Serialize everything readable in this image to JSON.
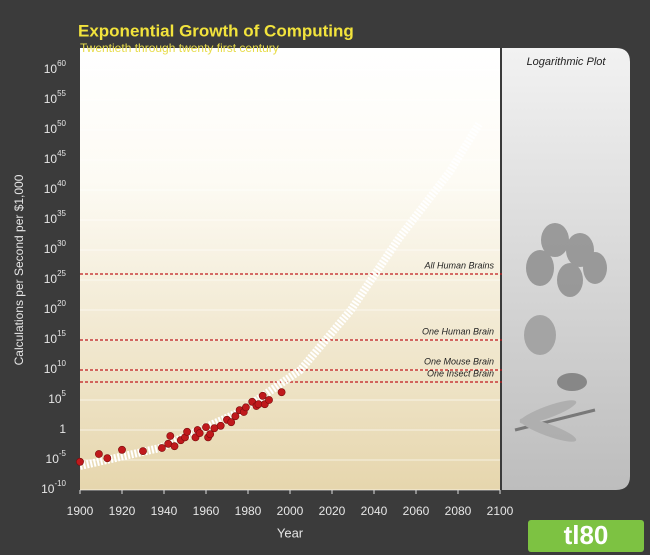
{
  "chart_data": {
    "type": "scatter",
    "title": "Exponential Growth of Computing",
    "subtitle": "Twentieth through twenty first century",
    "x_label": "Year",
    "y_label": "Calculations per Second per $1,000",
    "panel_title": "Logarithmic Plot",
    "log_y": true,
    "grid": true,
    "xlim": [
      1900,
      2100
    ],
    "xticks": [
      1900,
      1920,
      1940,
      1960,
      1980,
      2000,
      2020,
      2040,
      2060,
      2080,
      2100
    ],
    "ylim": [
      1e-10,
      1e+60
    ],
    "yticks": [
      {
        "value": 1e-10,
        "label": "10",
        "exponent": "-10"
      },
      {
        "value": 1e-05,
        "label": "10",
        "exponent": "-5"
      },
      1,
      {
        "value": 100000.0,
        "label": "10",
        "exponent": "5"
      },
      {
        "value": 10000000000.0,
        "label": "10",
        "exponent": "10"
      },
      {
        "value": 1000000000000000.0,
        "label": "10",
        "exponent": "15"
      },
      {
        "value": 1e+20,
        "label": "10",
        "exponent": "20"
      },
      {
        "value": 1e+25,
        "label": "10",
        "exponent": "25"
      },
      {
        "value": 1e+30,
        "label": "10",
        "exponent": "30"
      },
      {
        "value": 1e+35,
        "label": "10",
        "exponent": "35"
      },
      {
        "value": 1e+40,
        "label": "10",
        "exponent": "40"
      },
      {
        "value": 1e+45,
        "label": "10",
        "exponent": "45"
      },
      {
        "value": 1e+50,
        "label": "10",
        "exponent": "50"
      },
      {
        "value": 1e+55,
        "label": "10",
        "exponent": "55"
      },
      {
        "value": 1e+60,
        "label": "10",
        "exponent": "60"
      }
    ],
    "points": {
      "color": "#c0191c",
      "x": [
        1900,
        1909,
        1913,
        1920,
        1930,
        1939,
        1942,
        1943,
        1945,
        1948,
        1950,
        1951,
        1955,
        1956,
        1957,
        1960,
        1961,
        1962,
        1964,
        1967,
        1970,
        1972,
        1974,
        1976,
        1978,
        1979,
        1982,
        1984,
        1985,
        1987,
        1988,
        1990,
        1996
      ],
      "values": [
        5e-06,
        0.0001,
        2e-05,
        0.0005,
        0.0003,
        0.001,
        0.005,
        0.1,
        0.002,
        0.02,
        0.06,
        0.5,
        0.06,
        1,
        0.3,
        3,
        0.06,
        0.2,
        2,
        5,
        50,
        20,
        200,
        2000,
        1000,
        6000,
        50000,
        10000,
        20000,
        500000,
        20000,
        100000,
        2000000
      ]
    },
    "trend": {
      "color": "#ffffff",
      "x": [
        1900,
        1938,
        1976,
        2005,
        2029,
        2052,
        2076,
        2090
      ],
      "values": [
        1e-06,
        0.001,
        1000.0,
        10000000000.0,
        1e+20,
        1e+32,
        1e+43,
        1e+51
      ]
    },
    "thresholds": {
      "color": "#c0191c",
      "items": [
        {
          "label": "All Human Brains",
          "value": 1e+26
        },
        {
          "label": "One Human Brain",
          "value": 1000000000000000.0
        },
        {
          "label": "One Mouse Brain",
          "value": 10000000000.0
        },
        {
          "label": "One Insect Brain",
          "value": 100000000.0
        }
      ]
    }
  },
  "watermark": "tl80"
}
